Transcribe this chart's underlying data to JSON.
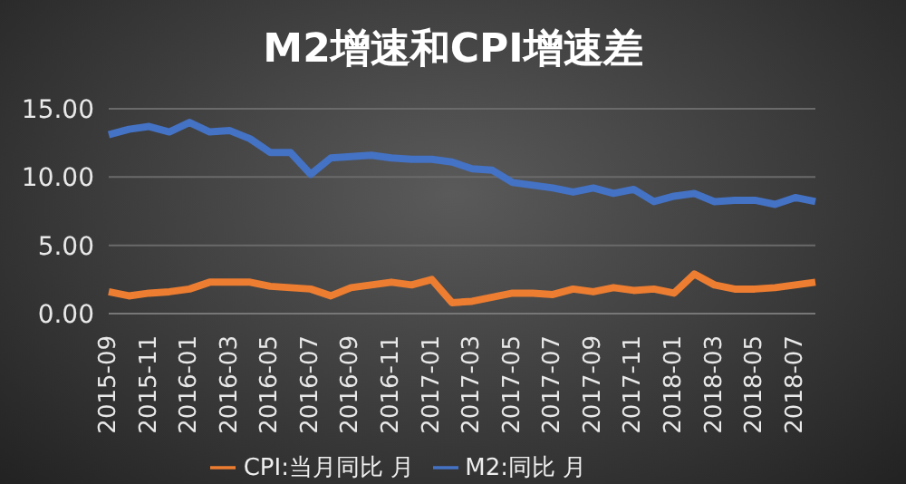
{
  "chart_data": {
    "type": "line",
    "title": "M2增速和CPI增速差",
    "categories": [
      "2015-09",
      null,
      "2015-11",
      null,
      "2016-01",
      null,
      "2016-03",
      null,
      "2016-05",
      null,
      "2016-07",
      null,
      "2016-09",
      null,
      "2016-11",
      null,
      "2017-01",
      null,
      "2017-03",
      null,
      "2017-05",
      null,
      "2017-07",
      null,
      "2017-09",
      null,
      "2017-11",
      null,
      "2018-01",
      null,
      "2018-03",
      null,
      "2018-05",
      null,
      "2018-07",
      null
    ],
    "series": [
      {
        "name": "M2:同比 月",
        "color": "#4472c4",
        "values": [
          13.1,
          13.5,
          13.7,
          13.3,
          14.0,
          13.3,
          13.4,
          12.8,
          11.8,
          11.8,
          10.2,
          11.4,
          11.5,
          11.6,
          11.4,
          11.3,
          11.3,
          11.1,
          10.6,
          10.5,
          9.6,
          9.4,
          9.2,
          8.9,
          9.2,
          8.8,
          9.1,
          8.2,
          8.6,
          8.8,
          8.2,
          8.3,
          8.3,
          8.0,
          8.5,
          8.2
        ]
      },
      {
        "name": "CPI:当月同比 月",
        "color": "#ed7d31",
        "values": [
          1.6,
          1.3,
          1.5,
          1.6,
          1.8,
          2.3,
          2.3,
          2.3,
          2.0,
          1.9,
          1.8,
          1.3,
          1.9,
          2.1,
          2.3,
          2.1,
          2.5,
          0.8,
          0.9,
          1.2,
          1.5,
          1.5,
          1.4,
          1.8,
          1.6,
          1.9,
          1.7,
          1.8,
          1.5,
          2.9,
          2.1,
          1.8,
          1.8,
          1.9,
          2.1,
          2.3
        ]
      }
    ],
    "ylim": [
      0,
      15
    ],
    "yticks": [
      {
        "value": 0,
        "label": "0.00"
      },
      {
        "value": 5,
        "label": "5.00"
      },
      {
        "value": 10,
        "label": "10.00"
      },
      {
        "value": 15,
        "label": "15.00"
      }
    ],
    "grid": "y",
    "legend": "bottom",
    "marker": "none",
    "line_style": "solid"
  }
}
